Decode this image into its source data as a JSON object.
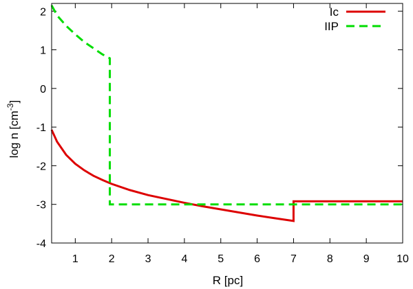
{
  "chart_data": {
    "type": "line",
    "xlabel": "R [pc]",
    "ylabel": {
      "base": "log n [cm",
      "superscript": "-3",
      "close": "]"
    },
    "xlim": [
      0.35,
      10
    ],
    "ylim": [
      -4,
      2.2
    ],
    "x_ticks": [
      1,
      2,
      3,
      4,
      5,
      6,
      7,
      8,
      9,
      10
    ],
    "y_ticks": [
      2,
      1,
      0,
      -1,
      -2,
      -3,
      -4
    ],
    "legend": {
      "position": "top-right"
    },
    "series": [
      {
        "name": "Ic",
        "color": "#dd0000",
        "style": "solid",
        "points": [
          [
            0.35,
            -1.07
          ],
          [
            0.5,
            -1.38
          ],
          [
            0.75,
            -1.72
          ],
          [
            1.0,
            -1.95
          ],
          [
            1.25,
            -2.12
          ],
          [
            1.5,
            -2.26
          ],
          [
            1.75,
            -2.37
          ],
          [
            2.0,
            -2.47
          ],
          [
            2.5,
            -2.63
          ],
          [
            3.0,
            -2.76
          ],
          [
            3.5,
            -2.86
          ],
          [
            4.0,
            -2.96
          ],
          [
            4.5,
            -3.05
          ],
          [
            5.0,
            -3.13
          ],
          [
            5.5,
            -3.21
          ],
          [
            6.0,
            -3.29
          ],
          [
            6.5,
            -3.36
          ],
          [
            7.0,
            -3.43
          ],
          [
            7.0,
            -2.92
          ],
          [
            8.0,
            -2.92
          ],
          [
            9.0,
            -2.92
          ],
          [
            10.0,
            -2.92
          ]
        ]
      },
      {
        "name": "IIP",
        "color": "#00dd00",
        "style": "dashed",
        "points": [
          [
            0.35,
            2.15
          ],
          [
            0.5,
            1.89
          ],
          [
            0.75,
            1.62
          ],
          [
            1.0,
            1.4
          ],
          [
            1.25,
            1.2
          ],
          [
            1.5,
            1.04
          ],
          [
            1.75,
            0.88
          ],
          [
            1.95,
            0.78
          ],
          [
            1.95,
            -3.0
          ],
          [
            4.0,
            -3.0
          ],
          [
            7.0,
            -3.0
          ],
          [
            10.0,
            -3.0
          ]
        ]
      }
    ]
  }
}
